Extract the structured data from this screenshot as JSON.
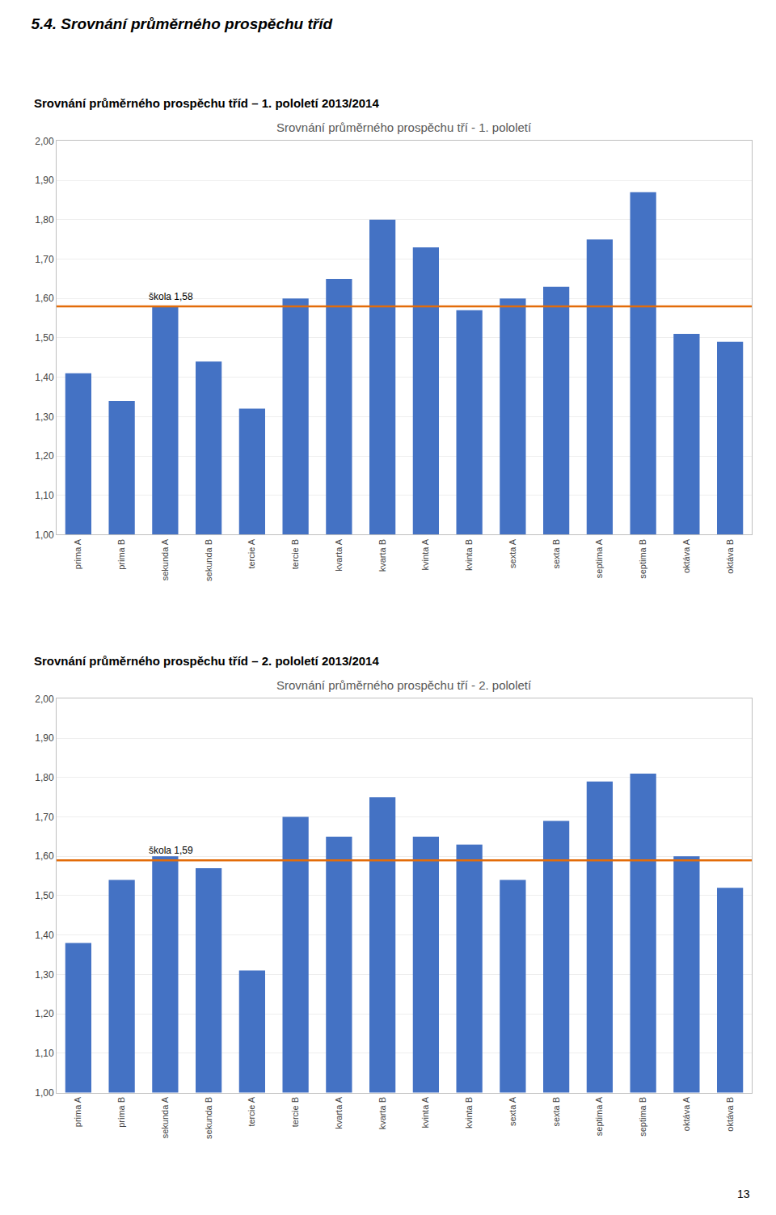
{
  "title": "5.4. Srovnání průměrného prospěchu tříd",
  "page_number": "13",
  "chart_data": [
    {
      "type": "bar",
      "subtitle": "Srovnání průměrného prospěchu tříd – 1. pololetí 2013/2014",
      "title": "Srovnání průměrného prospěchu tří - 1. pololetí",
      "categories": [
        "prima A",
        "prima B",
        "sekunda A",
        "sekunda B",
        "tercie A",
        "tercie B",
        "kvarta A",
        "kvarta B",
        "kvinta A",
        "kvinta B",
        "sexta A",
        "sexta B",
        "septima A",
        "septima B",
        "oktáva A",
        "oktáva B"
      ],
      "values": [
        1.41,
        1.34,
        1.58,
        1.44,
        1.32,
        1.6,
        1.65,
        1.8,
        1.73,
        1.57,
        1.6,
        1.63,
        1.75,
        1.87,
        1.51,
        1.49
      ],
      "color": "#4472C4",
      "reference_line": {
        "value": 1.58,
        "label": "škola 1,58",
        "color": "#E36C09"
      },
      "ylim": [
        1.0,
        2.0
      ],
      "yticks": [
        {
          "value": 1.0,
          "label": "1,00"
        },
        {
          "value": 1.1,
          "label": "1,10"
        },
        {
          "value": 1.2,
          "label": "1,20"
        },
        {
          "value": 1.3,
          "label": "1,30"
        },
        {
          "value": 1.4,
          "label": "1,40"
        },
        {
          "value": 1.5,
          "label": "1,50"
        },
        {
          "value": 1.6,
          "label": "1,60"
        },
        {
          "value": 1.7,
          "label": "1,70"
        },
        {
          "value": 1.8,
          "label": "1,80"
        },
        {
          "value": 1.9,
          "label": "1,90"
        },
        {
          "value": 2.0,
          "label": "2,00"
        }
      ],
      "grid": true
    },
    {
      "type": "bar",
      "subtitle": "Srovnání průměrného prospěchu tříd – 2. pololetí 2013/2014",
      "title": "Srovnání průměrného prospěchu tří - 2. pololetí",
      "categories": [
        "prima A",
        "prima B",
        "sekunda A",
        "sekunda B",
        "tercie A",
        "tercie B",
        "kvarta A",
        "kvarta B",
        "kvinta A",
        "kvinta B",
        "sexta A",
        "sexta B",
        "septima A",
        "septima B",
        "oktáva A",
        "oktáva B"
      ],
      "values": [
        1.38,
        1.54,
        1.6,
        1.57,
        1.31,
        1.7,
        1.65,
        1.75,
        1.65,
        1.63,
        1.54,
        1.69,
        1.79,
        1.81,
        1.6,
        1.52
      ],
      "color": "#4472C4",
      "reference_line": {
        "value": 1.59,
        "label": "škola 1,59",
        "color": "#E36C09"
      },
      "ylim": [
        1.0,
        2.0
      ],
      "yticks": [
        {
          "value": 1.0,
          "label": "1,00"
        },
        {
          "value": 1.1,
          "label": "1,10"
        },
        {
          "value": 1.2,
          "label": "1,20"
        },
        {
          "value": 1.3,
          "label": "1,30"
        },
        {
          "value": 1.4,
          "label": "1,40"
        },
        {
          "value": 1.5,
          "label": "1,50"
        },
        {
          "value": 1.6,
          "label": "1,60"
        },
        {
          "value": 1.7,
          "label": "1,70"
        },
        {
          "value": 1.8,
          "label": "1,80"
        },
        {
          "value": 1.9,
          "label": "1,90"
        },
        {
          "value": 2.0,
          "label": "2,00"
        }
      ],
      "grid": true
    }
  ]
}
